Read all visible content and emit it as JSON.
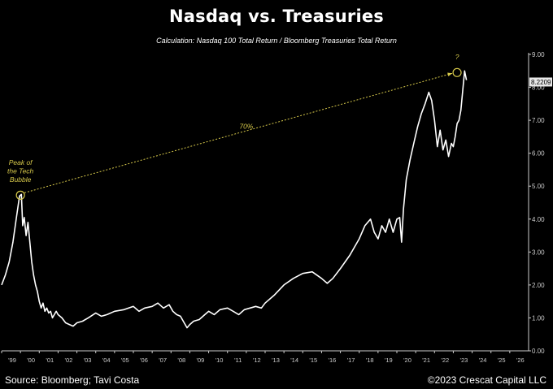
{
  "chart_data": {
    "type": "line",
    "title": "Nasdaq vs. Treasuries",
    "subtitle": "Calculation: Nasdaq 100 Total Return / Bloomberg Treasuries Total Return",
    "xlim": [
      1999.0,
      2027.0
    ],
    "ylim": [
      0.0,
      9.0
    ],
    "x_tick_labels": [
      "'99",
      "'00",
      "'01",
      "'02",
      "'03",
      "'04",
      "'05",
      "'06",
      "'07",
      "'08",
      "'09",
      "'10",
      "'11",
      "'12",
      "'13",
      "'14",
      "'15",
      "'16",
      "'17",
      "'18",
      "'19",
      "'20",
      "'21",
      "'22",
      "'23",
      "'24",
      "'25",
      "'26"
    ],
    "y_tick_labels": [
      "0.00",
      "1.00",
      "2.00",
      "3.00",
      "4.00",
      "5.00",
      "6.00",
      "7.00",
      "8.00",
      "9.00"
    ],
    "grid": false,
    "series": [
      {
        "color": "#ffffff",
        "x": [
          1999.0,
          1999.2,
          1999.4,
          1999.6,
          1999.8,
          1999.95,
          2000.05,
          2000.12,
          2000.2,
          2000.3,
          2000.4,
          2000.5,
          2000.6,
          2000.7,
          2000.8,
          2000.9,
          2001.0,
          2001.1,
          2001.2,
          2001.3,
          2001.4,
          2001.5,
          2001.6,
          2001.7,
          2001.8,
          2001.9,
          2002.0,
          2002.2,
          2002.4,
          2002.6,
          2002.8,
          2003.0,
          2003.3,
          2003.6,
          2004.0,
          2004.3,
          2004.6,
          2005.0,
          2005.5,
          2006.0,
          2006.3,
          2006.6,
          2007.0,
          2007.3,
          2007.6,
          2007.9,
          2008.1,
          2008.3,
          2008.5,
          2008.7,
          2008.85,
          2009.0,
          2009.2,
          2009.5,
          2009.8,
          2010.0,
          2010.3,
          2010.6,
          2011.0,
          2011.3,
          2011.6,
          2011.9,
          2012.2,
          2012.5,
          2012.8,
          2013.0,
          2013.5,
          2014.0,
          2014.5,
          2015.0,
          2015.5,
          2016.0,
          2016.3,
          2016.6,
          2017.0,
          2017.5,
          2018.0,
          2018.3,
          2018.6,
          2018.8,
          2019.0,
          2019.2,
          2019.4,
          2019.6,
          2019.8,
          2020.0,
          2020.15,
          2020.25,
          2020.35,
          2020.5,
          2020.7,
          2020.9,
          2021.1,
          2021.3,
          2021.5,
          2021.7,
          2021.85,
          2022.0,
          2022.15,
          2022.3,
          2022.45,
          2022.6,
          2022.75,
          2022.9,
          2023.0,
          2023.1,
          2023.2,
          2023.3,
          2023.4,
          2023.5,
          2023.6,
          2023.7
        ],
        "y": [
          2.0,
          2.3,
          2.7,
          3.3,
          4.1,
          4.7,
          4.75,
          3.8,
          4.05,
          3.5,
          3.9,
          3.3,
          2.7,
          2.3,
          2.0,
          1.8,
          1.5,
          1.3,
          1.45,
          1.2,
          1.3,
          1.15,
          1.2,
          1.0,
          1.1,
          1.2,
          1.1,
          1.0,
          0.85,
          0.8,
          0.75,
          0.85,
          0.9,
          1.0,
          1.15,
          1.05,
          1.1,
          1.2,
          1.25,
          1.35,
          1.2,
          1.3,
          1.35,
          1.45,
          1.3,
          1.4,
          1.2,
          1.1,
          1.05,
          0.85,
          0.7,
          0.8,
          0.9,
          0.95,
          1.1,
          1.2,
          1.1,
          1.25,
          1.3,
          1.2,
          1.1,
          1.25,
          1.3,
          1.35,
          1.3,
          1.45,
          1.7,
          2.0,
          2.2,
          2.35,
          2.4,
          2.2,
          2.05,
          2.2,
          2.5,
          2.9,
          3.4,
          3.8,
          4.0,
          3.6,
          3.4,
          3.8,
          3.6,
          4.0,
          3.6,
          4.0,
          4.05,
          3.3,
          4.3,
          5.2,
          5.8,
          6.3,
          6.8,
          7.2,
          7.5,
          7.85,
          7.6,
          7.0,
          6.2,
          6.7,
          6.1,
          6.4,
          5.9,
          6.3,
          6.2,
          6.5,
          6.9,
          7.0,
          7.3,
          7.9,
          8.5,
          8.2209
        ]
      }
    ],
    "annotations": [
      {
        "text_lines": [
          "Peak of",
          "the Tech",
          "Bubble"
        ],
        "x": 2000.0,
        "y": 4.75
      },
      {
        "text": "70%",
        "x": 2012.0,
        "y": 6.75
      },
      {
        "text": "?",
        "x": 2023.2,
        "y": 8.9
      }
    ],
    "arrow": {
      "from": [
        2000.0,
        4.75
      ],
      "to": [
        2023.2,
        8.45
      ]
    },
    "last_value_label": "8.2209",
    "accent_color": "#d6c84a"
  },
  "footer": {
    "source": "Source: Bloomberg; Tavi Costa",
    "copyright": "©2023 Crescat Capital LLC"
  }
}
